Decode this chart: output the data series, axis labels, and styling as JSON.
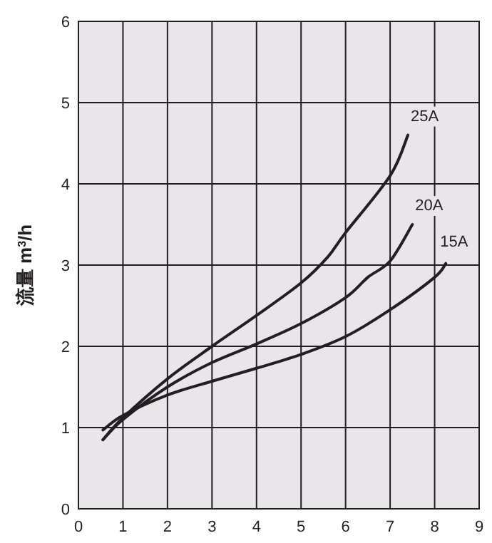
{
  "chart_data": {
    "type": "line",
    "ylabel": "流量 m$^{3}$/h",
    "xlim": [
      0,
      9
    ],
    "ylim": [
      0,
      6
    ],
    "xticks": [
      0,
      1,
      2,
      3,
      4,
      5,
      6,
      7,
      8,
      9
    ],
    "yticks": [
      0,
      1,
      2,
      3,
      4,
      5,
      6
    ],
    "grid": true,
    "marker": "none",
    "line_style": "solid",
    "series": [
      {
        "name": "25A",
        "color": "#231f20",
        "x": [
          0.55,
          1,
          2,
          3,
          4,
          5,
          5.6,
          6,
          7,
          7.4
        ],
        "values": [
          0.85,
          1.12,
          1.6,
          2.0,
          2.38,
          2.78,
          3.1,
          3.4,
          4.1,
          4.6
        ]
      },
      {
        "name": "20A",
        "color": "#231f20",
        "x": [
          0.55,
          1,
          2,
          3,
          4,
          5,
          6,
          6.5,
          7,
          7.5
        ],
        "values": [
          0.85,
          1.1,
          1.5,
          1.8,
          2.03,
          2.28,
          2.6,
          2.85,
          3.05,
          3.5
        ]
      },
      {
        "name": "15A",
        "color": "#231f20",
        "x": [
          0.55,
          1,
          2,
          3,
          4,
          5,
          6,
          7,
          8,
          8.25
        ],
        "values": [
          0.97,
          1.15,
          1.4,
          1.57,
          1.73,
          1.9,
          2.12,
          2.45,
          2.85,
          3.02
        ]
      }
    ]
  }
}
